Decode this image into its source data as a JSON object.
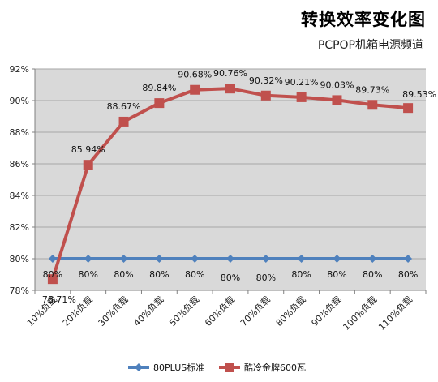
{
  "chart_data": {
    "type": "line",
    "title": "转换效率变化图",
    "subtitle": "PCPOP机箱电源频道",
    "categories": [
      "10%负载",
      "20%负载",
      "30%负载",
      "40%负载",
      "50%负载",
      "60%负载",
      "70%负载",
      "80%负载",
      "90%负载",
      "100%负载",
      "110%负载"
    ],
    "ylim": [
      78,
      92
    ],
    "yticks": [
      78,
      80,
      82,
      84,
      86,
      88,
      90,
      92
    ],
    "ytick_labels": [
      "78%",
      "80%",
      "82%",
      "84%",
      "86%",
      "88%",
      "90%",
      "92%"
    ],
    "grid": true,
    "legend_position": "bottom",
    "series": [
      {
        "name": "80PLUS标准",
        "color": "#4F81BD",
        "marker": "diamond",
        "values": [
          80,
          80,
          80,
          80,
          80,
          80,
          80,
          80,
          80,
          80,
          80
        ],
        "labels": [
          "80%",
          "80%",
          "80%",
          "80%",
          "80%",
          "80%",
          "80%",
          "80%",
          "80%",
          "80%",
          "80%"
        ]
      },
      {
        "name": "酷冷金牌600瓦",
        "color": "#C0504D",
        "marker": "square",
        "values": [
          78.71,
          85.94,
          88.67,
          89.84,
          90.68,
          90.76,
          90.32,
          90.21,
          90.03,
          89.73,
          89.53
        ],
        "labels": [
          "78.71%",
          "85.94%",
          "88.67%",
          "89.84%",
          "90.68%",
          "90.76%",
          "90.32%",
          "90.21%",
          "90.03%",
          "89.73%",
          "89.53%"
        ]
      }
    ]
  }
}
